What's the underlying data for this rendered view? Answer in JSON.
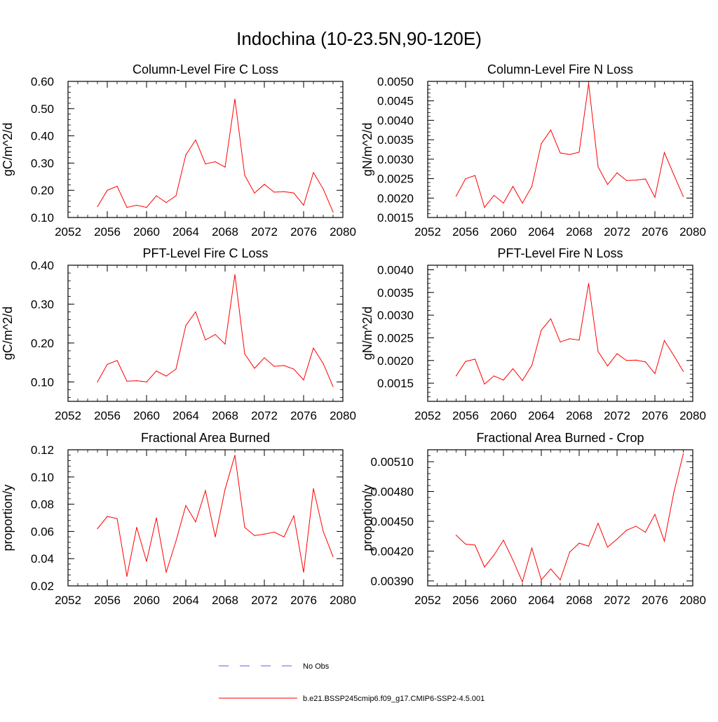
{
  "title": "Indochina (10-23.5N,90-120E)",
  "legend": [
    {
      "label": "No Obs",
      "color": "#5a5aff",
      "dash": true
    },
    {
      "label": "b.e21.BSSP245cmip6.f09_g17.CMIP6-SSP2-4.5.001",
      "color": "#ff0000",
      "dash": false
    }
  ],
  "chart_data": [
    {
      "type": "line",
      "title": "Column-Level Fire C Loss",
      "xlabel": "",
      "ylabel": "gC/m^2/d",
      "xlim": [
        2052,
        2080
      ],
      "ylim": [
        0.1,
        0.6
      ],
      "xticks": [
        2052,
        2056,
        2060,
        2064,
        2068,
        2072,
        2076,
        2080
      ],
      "xtick_labels": [
        "2052",
        "2056",
        "2060",
        "2064",
        "2068",
        "2072",
        "2076",
        "2080"
      ],
      "yticks": [
        0.1,
        0.2,
        0.3,
        0.4,
        0.5,
        0.6
      ],
      "ytick_labels": [
        "0.10",
        "0.20",
        "0.30",
        "0.40",
        "0.50",
        "0.60"
      ],
      "x": [
        2055,
        2056,
        2057,
        2058,
        2059,
        2060,
        2061,
        2062,
        2063,
        2064,
        2065,
        2066,
        2067,
        2068,
        2069,
        2070,
        2071,
        2072,
        2073,
        2074,
        2075,
        2076,
        2077,
        2078,
        2079
      ],
      "series": [
        {
          "color": "#ff0000",
          "values": [
            0.14,
            0.2,
            0.215,
            0.137,
            0.145,
            0.137,
            0.18,
            0.155,
            0.18,
            0.33,
            0.385,
            0.297,
            0.305,
            0.285,
            0.535,
            0.255,
            0.19,
            0.222,
            0.193,
            0.195,
            0.19,
            0.145,
            0.265,
            0.205,
            0.12
          ]
        }
      ]
    },
    {
      "type": "line",
      "title": "Column-Level Fire N Loss",
      "xlabel": "",
      "ylabel": "gN/m^2/d",
      "xlim": [
        2052,
        2080
      ],
      "ylim": [
        0.0015,
        0.005
      ],
      "xticks": [
        2052,
        2056,
        2060,
        2064,
        2068,
        2072,
        2076,
        2080
      ],
      "xtick_labels": [
        "2052",
        "2056",
        "2060",
        "2064",
        "2068",
        "2072",
        "2076",
        "2080"
      ],
      "yticks": [
        0.0015,
        0.002,
        0.0025,
        0.003,
        0.0035,
        0.004,
        0.0045,
        0.005
      ],
      "ytick_labels": [
        "0.0015",
        "0.0020",
        "0.0025",
        "0.0030",
        "0.0035",
        "0.0040",
        "0.0045",
        "0.0050"
      ],
      "x": [
        2055,
        2056,
        2057,
        2058,
        2059,
        2060,
        2061,
        2062,
        2063,
        2064,
        2065,
        2066,
        2067,
        2068,
        2069,
        2070,
        2071,
        2072,
        2073,
        2074,
        2075,
        2076,
        2077,
        2078,
        2079
      ],
      "series": [
        {
          "color": "#ff0000",
          "values": [
            0.00205,
            0.0025,
            0.00258,
            0.00176,
            0.00207,
            0.00187,
            0.0023,
            0.00187,
            0.0023,
            0.0034,
            0.00375,
            0.00316,
            0.00312,
            0.00318,
            0.00495,
            0.0028,
            0.00235,
            0.00265,
            0.00245,
            0.00246,
            0.00249,
            0.00202,
            0.00317,
            0.0026,
            0.00204
          ]
        }
      ]
    },
    {
      "type": "line",
      "title": "PFT-Level Fire C Loss",
      "xlabel": "",
      "ylabel": "gC/m^2/d",
      "xlim": [
        2052,
        2080
      ],
      "ylim": [
        0.05,
        0.4
      ],
      "xticks": [
        2052,
        2056,
        2060,
        2064,
        2068,
        2072,
        2076,
        2080
      ],
      "xtick_labels": [
        "2052",
        "2056",
        "2060",
        "2064",
        "2068",
        "2072",
        "2076",
        "2080"
      ],
      "yticks": [
        0.1,
        0.2,
        0.3,
        0.4
      ],
      "ytick_labels": [
        "0.10",
        "0.20",
        "0.30",
        "0.40"
      ],
      "x": [
        2055,
        2056,
        2057,
        2058,
        2059,
        2060,
        2061,
        2062,
        2063,
        2064,
        2065,
        2066,
        2067,
        2068,
        2069,
        2070,
        2071,
        2072,
        2073,
        2074,
        2075,
        2076,
        2077,
        2078,
        2079
      ],
      "series": [
        {
          "color": "#ff0000",
          "values": [
            0.1,
            0.145,
            0.155,
            0.102,
            0.103,
            0.1,
            0.128,
            0.115,
            0.133,
            0.245,
            0.28,
            0.208,
            0.222,
            0.197,
            0.376,
            0.172,
            0.135,
            0.162,
            0.14,
            0.142,
            0.133,
            0.105,
            0.187,
            0.147,
            0.088
          ]
        }
      ]
    },
    {
      "type": "line",
      "title": "PFT-Level Fire N Loss",
      "xlabel": "",
      "ylabel": "gN/m^2/d",
      "xlim": [
        2052,
        2080
      ],
      "ylim": [
        0.0011,
        0.0041
      ],
      "xticks": [
        2052,
        2056,
        2060,
        2064,
        2068,
        2072,
        2076,
        2080
      ],
      "xtick_labels": [
        "2052",
        "2056",
        "2060",
        "2064",
        "2068",
        "2072",
        "2076",
        "2080"
      ],
      "yticks": [
        0.0015,
        0.002,
        0.0025,
        0.003,
        0.0035,
        0.004
      ],
      "ytick_labels": [
        "0.0015",
        "0.0020",
        "0.0025",
        "0.0030",
        "0.0035",
        "0.0040"
      ],
      "x": [
        2055,
        2056,
        2057,
        2058,
        2059,
        2060,
        2061,
        2062,
        2063,
        2064,
        2065,
        2066,
        2067,
        2068,
        2069,
        2070,
        2071,
        2072,
        2073,
        2074,
        2075,
        2076,
        2077,
        2078,
        2079
      ],
      "series": [
        {
          "color": "#ff0000",
          "values": [
            0.00166,
            0.00198,
            0.00203,
            0.00148,
            0.00166,
            0.00157,
            0.00182,
            0.00156,
            0.00189,
            0.00267,
            0.00292,
            0.00241,
            0.00248,
            0.00245,
            0.0037,
            0.0022,
            0.00188,
            0.00215,
            0.002,
            0.00201,
            0.00197,
            0.00171,
            0.00244,
            0.00211,
            0.00176
          ]
        }
      ]
    },
    {
      "type": "line",
      "title": "Fractional Area Burned",
      "xlabel": "",
      "ylabel": "proportion/y",
      "xlim": [
        2052,
        2080
      ],
      "ylim": [
        0.02,
        0.12
      ],
      "xticks": [
        2052,
        2056,
        2060,
        2064,
        2068,
        2072,
        2076,
        2080
      ],
      "xtick_labels": [
        "2052",
        "2056",
        "2060",
        "2064",
        "2068",
        "2072",
        "2076",
        "2080"
      ],
      "yticks": [
        0.02,
        0.04,
        0.06,
        0.08,
        0.1,
        0.12
      ],
      "ytick_labels": [
        "0.02",
        "0.04",
        "0.06",
        "0.08",
        "0.10",
        "0.12"
      ],
      "x": [
        2055,
        2056,
        2057,
        2058,
        2059,
        2060,
        2061,
        2062,
        2063,
        2064,
        2065,
        2066,
        2067,
        2068,
        2069,
        2070,
        2071,
        2072,
        2073,
        2074,
        2075,
        2076,
        2077,
        2078,
        2079
      ],
      "series": [
        {
          "color": "#ff0000",
          "values": [
            0.062,
            0.071,
            0.0695,
            0.027,
            0.063,
            0.038,
            0.07,
            0.03,
            0.053,
            0.079,
            0.067,
            0.09,
            0.056,
            0.091,
            0.116,
            0.063,
            0.057,
            0.058,
            0.0595,
            0.056,
            0.0715,
            0.03,
            0.0915,
            0.06,
            0.0415
          ]
        }
      ]
    },
    {
      "type": "line",
      "title": "Fractional Area Burned - Crop",
      "xlabel": "",
      "ylabel": "proportion/y",
      "xlim": [
        2052,
        2080
      ],
      "ylim": [
        0.00385,
        0.00522
      ],
      "xticks": [
        2052,
        2056,
        2060,
        2064,
        2068,
        2072,
        2076,
        2080
      ],
      "xtick_labels": [
        "2052",
        "2056",
        "2060",
        "2064",
        "2068",
        "2072",
        "2076",
        "2080"
      ],
      "yticks": [
        0.0039,
        0.0042,
        0.0045,
        0.0048,
        0.0051
      ],
      "ytick_labels": [
        "0.00390",
        "0.00420",
        "0.00450",
        "0.00480",
        "0.00510"
      ],
      "x": [
        2055,
        2056,
        2057,
        2058,
        2059,
        2060,
        2061,
        2062,
        2063,
        2064,
        2065,
        2066,
        2067,
        2068,
        2069,
        2070,
        2071,
        2072,
        2073,
        2074,
        2075,
        2076,
        2077,
        2078,
        2079
      ],
      "series": [
        {
          "color": "#ff0000",
          "values": [
            0.00436,
            0.00427,
            0.00426,
            0.00404,
            0.00416,
            0.00431,
            0.00411,
            0.00389,
            0.00423,
            0.00391,
            0.00402,
            0.00391,
            0.00419,
            0.00428,
            0.00425,
            0.00448,
            0.00424,
            0.00432,
            0.00441,
            0.00445,
            0.00439,
            0.00457,
            0.0043,
            0.00479,
            0.00518
          ]
        }
      ]
    }
  ]
}
